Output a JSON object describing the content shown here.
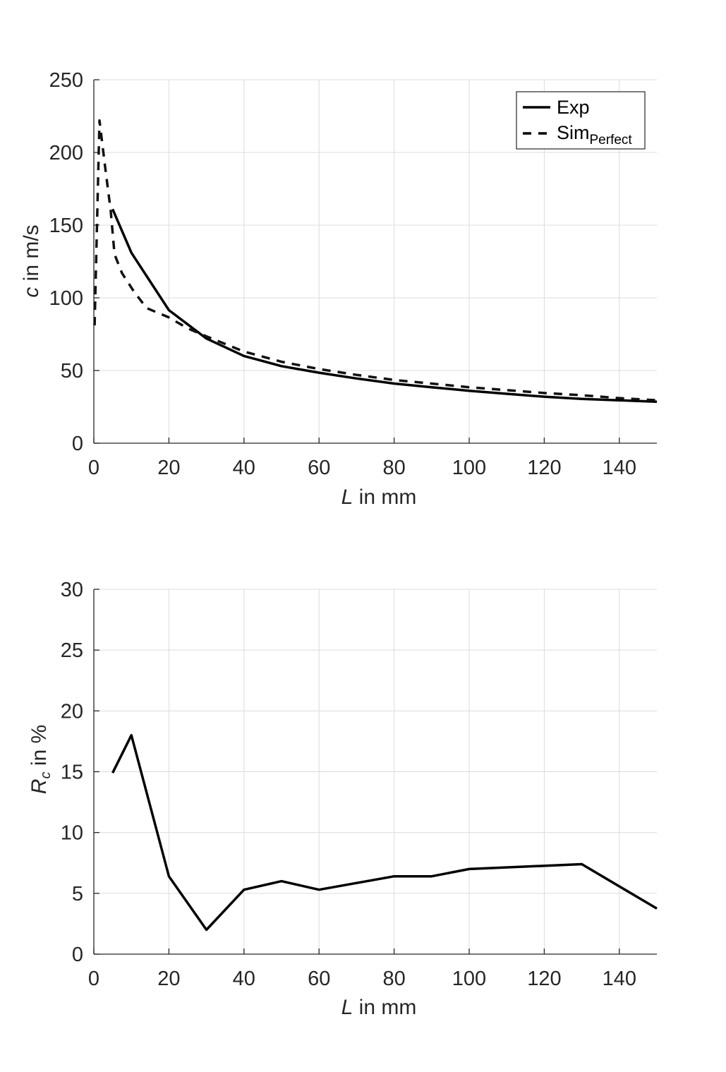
{
  "chart_data": [
    {
      "type": "line",
      "title": "",
      "xlabel_italic": "L",
      "xlabel_rest": " in mm",
      "ylabel_italic": "c",
      "ylabel_rest": " in m/s",
      "xlim": [
        0,
        150
      ],
      "ylim": [
        0,
        250
      ],
      "xticks": [
        0,
        20,
        40,
        60,
        80,
        100,
        120,
        140
      ],
      "yticks": [
        0,
        50,
        100,
        150,
        200,
        250
      ],
      "grid": true,
      "legend_position": "top-right",
      "series": [
        {
          "name": "Exp",
          "legend_label": "Exp",
          "legend_sub": "",
          "style": "solid",
          "x": [
            5,
            10,
            20,
            30,
            40,
            50,
            60,
            70,
            80,
            90,
            100,
            110,
            120,
            130,
            140,
            150
          ],
          "y": [
            161,
            131,
            91.5,
            72,
            60,
            53,
            48.5,
            44.5,
            41,
            38.5,
            36,
            34,
            32,
            30.5,
            29.5,
            28.5
          ]
        },
        {
          "name": "SimPerfect",
          "legend_label": "Sim",
          "legend_sub": "Perfect",
          "style": "dashed",
          "x": [
            0.2,
            1.5,
            3,
            4.5,
            5.5,
            7.5,
            10.5,
            14,
            20,
            25,
            30,
            40,
            50,
            60,
            70,
            80,
            90,
            100,
            110,
            120,
            130,
            140,
            150
          ],
          "y": [
            81,
            222,
            190,
            160,
            130,
            117,
            105,
            93,
            86.5,
            79,
            73.5,
            63,
            56,
            51,
            47,
            43.5,
            41,
            38.5,
            36.5,
            34.5,
            33,
            31,
            29.5
          ]
        }
      ]
    },
    {
      "type": "line",
      "title": "",
      "xlabel_italic": "L",
      "xlabel_rest": " in mm",
      "ylabel_italic": "R",
      "ylabel_sub": "c",
      "ylabel_rest": " in %",
      "xlim": [
        0,
        150
      ],
      "ylim": [
        0,
        30
      ],
      "xticks": [
        0,
        20,
        40,
        60,
        80,
        100,
        120,
        140
      ],
      "yticks": [
        0,
        5,
        10,
        15,
        20,
        25,
        30
      ],
      "grid": true,
      "series": [
        {
          "name": "Rc",
          "style": "solid",
          "x": [
            5,
            10,
            20,
            30,
            40,
            50,
            60,
            70,
            80,
            90,
            100,
            130,
            150
          ],
          "y": [
            14.9,
            18.0,
            6.4,
            2.0,
            5.3,
            6.0,
            5.3,
            5.85,
            6.4,
            6.4,
            7.0,
            7.4,
            3.75
          ]
        }
      ]
    }
  ]
}
